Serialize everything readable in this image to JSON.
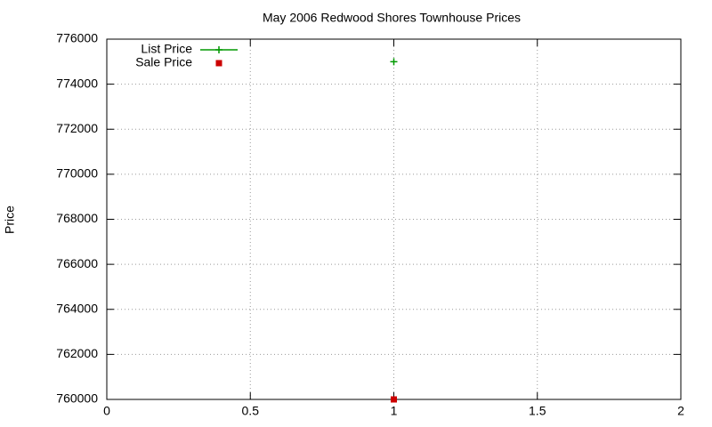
{
  "chart_data": {
    "type": "scatter",
    "title": "May 2006 Redwood Shores Townhouse Prices",
    "y_label": "Price",
    "series": [
      {
        "name": "List Price",
        "color": "#009900",
        "marker": "plus",
        "x": [
          1
        ],
        "values": [
          775000
        ]
      },
      {
        "name": "Sale Price",
        "color": "#cc0000",
        "marker": "square",
        "x": [
          1
        ],
        "values": [
          760000
        ]
      }
    ],
    "xlim": [
      0,
      2
    ],
    "xticks": [
      0,
      0.5,
      1,
      1.5,
      2
    ],
    "ylim": [
      760000,
      776000
    ],
    "yticks": [
      760000,
      762000,
      764000,
      766000,
      768000,
      770000,
      772000,
      774000,
      776000
    ],
    "grid": true,
    "legend": "top-left"
  }
}
